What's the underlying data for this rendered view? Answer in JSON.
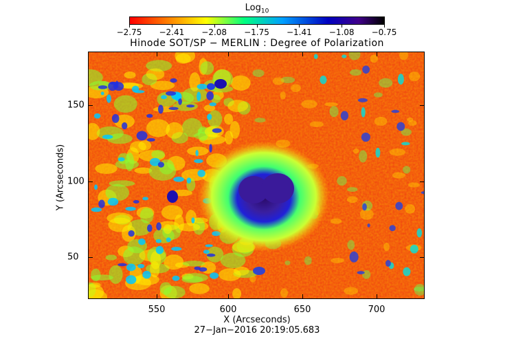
{
  "colorbar": {
    "title_main": "Log",
    "title_sub": "10",
    "tick_labels": [
      "−2.75",
      "−2.41",
      "−2.08",
      "−1.75",
      "−1.41",
      "−1.08",
      "−0.75"
    ],
    "range": [
      -2.75,
      -0.75
    ]
  },
  "plot": {
    "title": "Hinode SOT/SP − MERLIN : Degree of Polarization",
    "x_label": "X (Arcseconds)",
    "y_label": "Y (Arcseconds)",
    "x_ticks": [
      "550",
      "600",
      "650",
      "700"
    ],
    "y_ticks": [
      "150",
      "100",
      "50"
    ],
    "timestamp": "27−Jan−2016 20:19:05.683"
  },
  "colors": {
    "low": "#ff0000",
    "mid_low": "#ffff00",
    "mid": "#00ff80",
    "mid_high": "#00a0ff",
    "high": "#0000c0",
    "max": "#000000"
  }
}
